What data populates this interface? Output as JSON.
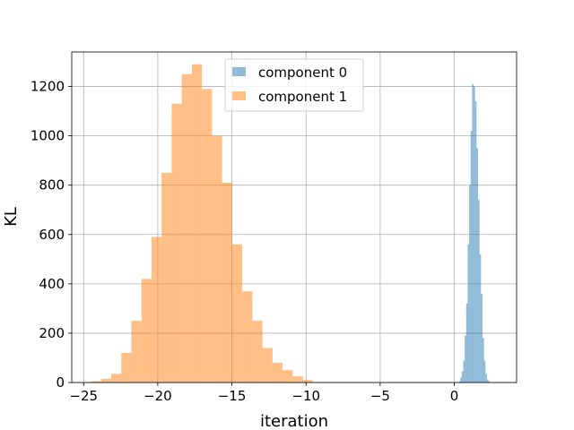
{
  "chart_data": {
    "type": "histogram",
    "title": "",
    "xlabel": "iteration",
    "ylabel": "KL",
    "xlim": [
      -25.8,
      4.2
    ],
    "ylim": [
      0,
      1340
    ],
    "xticks": [
      -25,
      -20,
      -15,
      -10,
      -5,
      0
    ],
    "yticks": [
      0,
      200,
      400,
      600,
      800,
      1000,
      1200
    ],
    "grid": true,
    "legend_position": "top-center",
    "series": [
      {
        "name": "component 0",
        "color": "#1f77b4",
        "opacity": 0.5,
        "bin_start": 0.3,
        "bin_width": 0.1,
        "counts": [
          5,
          20,
          45,
          90,
          190,
          320,
          560,
          800,
          1020,
          1210,
          1200,
          1140,
          950,
          740,
          520,
          360,
          180,
          90,
          35,
          12,
          5
        ]
      },
      {
        "name": "component 1",
        "color": "#ff7f0e",
        "opacity": 0.5,
        "bin_start": -24.5,
        "bin_width": 0.68,
        "counts": [
          5,
          15,
          35,
          120,
          250,
          420,
          590,
          850,
          1130,
          1250,
          1290,
          1190,
          1000,
          810,
          560,
          370,
          250,
          140,
          80,
          50,
          25,
          10
        ]
      }
    ]
  }
}
